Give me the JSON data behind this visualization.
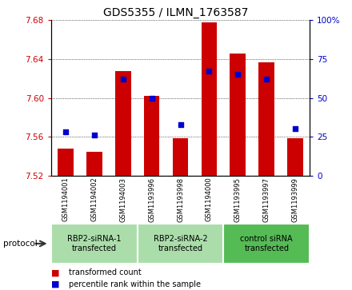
{
  "title": "GDS5355 / ILMN_1763587",
  "samples": [
    "GSM1194001",
    "GSM1194002",
    "GSM1194003",
    "GSM1193996",
    "GSM1193998",
    "GSM1194000",
    "GSM1193995",
    "GSM1193997",
    "GSM1193999"
  ],
  "bar_values": [
    7.548,
    7.544,
    7.628,
    7.602,
    7.558,
    7.678,
    7.646,
    7.637,
    7.558
  ],
  "percentile_values": [
    28,
    26,
    62,
    50,
    33,
    67,
    65,
    62,
    30
  ],
  "bar_bottom": 7.52,
  "ylim_left": [
    7.52,
    7.68
  ],
  "ylim_right": [
    0,
    100
  ],
  "yticks_left": [
    7.52,
    7.56,
    7.6,
    7.64,
    7.68
  ],
  "yticks_right": [
    0,
    25,
    50,
    75,
    100
  ],
  "bar_color": "#cc0000",
  "dot_color": "#0000cc",
  "groups": [
    {
      "label": "RBP2-siRNA-1\ntransfected",
      "indices": [
        0,
        1,
        2
      ],
      "color": "#aaddaa"
    },
    {
      "label": "RBP2-siRNA-2\ntransfected",
      "indices": [
        3,
        4,
        5
      ],
      "color": "#aaddaa"
    },
    {
      "label": "control siRNA\ntransfected",
      "indices": [
        6,
        7,
        8
      ],
      "color": "#55bb55"
    }
  ],
  "protocol_label": "protocol",
  "legend_items": [
    {
      "label": "transformed count",
      "color": "#cc0000"
    },
    {
      "label": "percentile rank within the sample",
      "color": "#0000cc"
    }
  ],
  "title_fontsize": 10,
  "sample_fontsize": 6,
  "group_fontsize": 7,
  "legend_fontsize": 7
}
